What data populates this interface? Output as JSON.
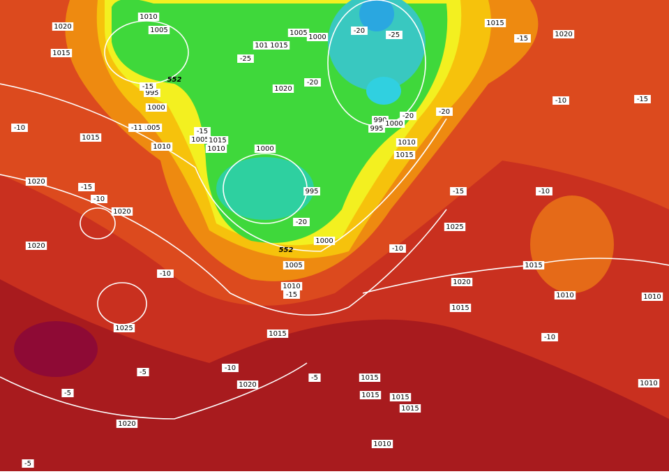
{
  "pressure_labels": [
    "1020",
    "1015",
    "1010",
    "1005",
    "995",
    "1000",
    "1005",
    "1015",
    "1010",
    "1020",
    "1020",
    "1020",
    "1005",
    "1000",
    "1010",
    "1015",
    "1020",
    "1000",
    "995",
    "1005",
    "1015",
    "1010",
    "990",
    "995",
    "1000",
    "1010",
    "1015",
    "1015",
    "1020",
    "1025",
    "1015",
    "1000",
    "1005",
    "1010",
    "1020",
    "1015",
    "1010",
    "1010",
    "1025",
    "1015",
    "1015",
    "1015",
    "1015",
    "1015",
    "1020",
    "1020",
    "1010",
    "1010"
  ],
  "temperature_labels": [
    "-20",
    "-25",
    "-25",
    "-20",
    "-15",
    "-11",
    "-15",
    "-10",
    "-15",
    "-10",
    "-20",
    "-20",
    "-20",
    "-15",
    "-10",
    "-15",
    "-15",
    "-10",
    "-10",
    "-10",
    "-15",
    "-10",
    "-5",
    "-5",
    "-5",
    "-10",
    "-5"
  ],
  "height_labels": [
    "552",
    "552"
  ]
}
